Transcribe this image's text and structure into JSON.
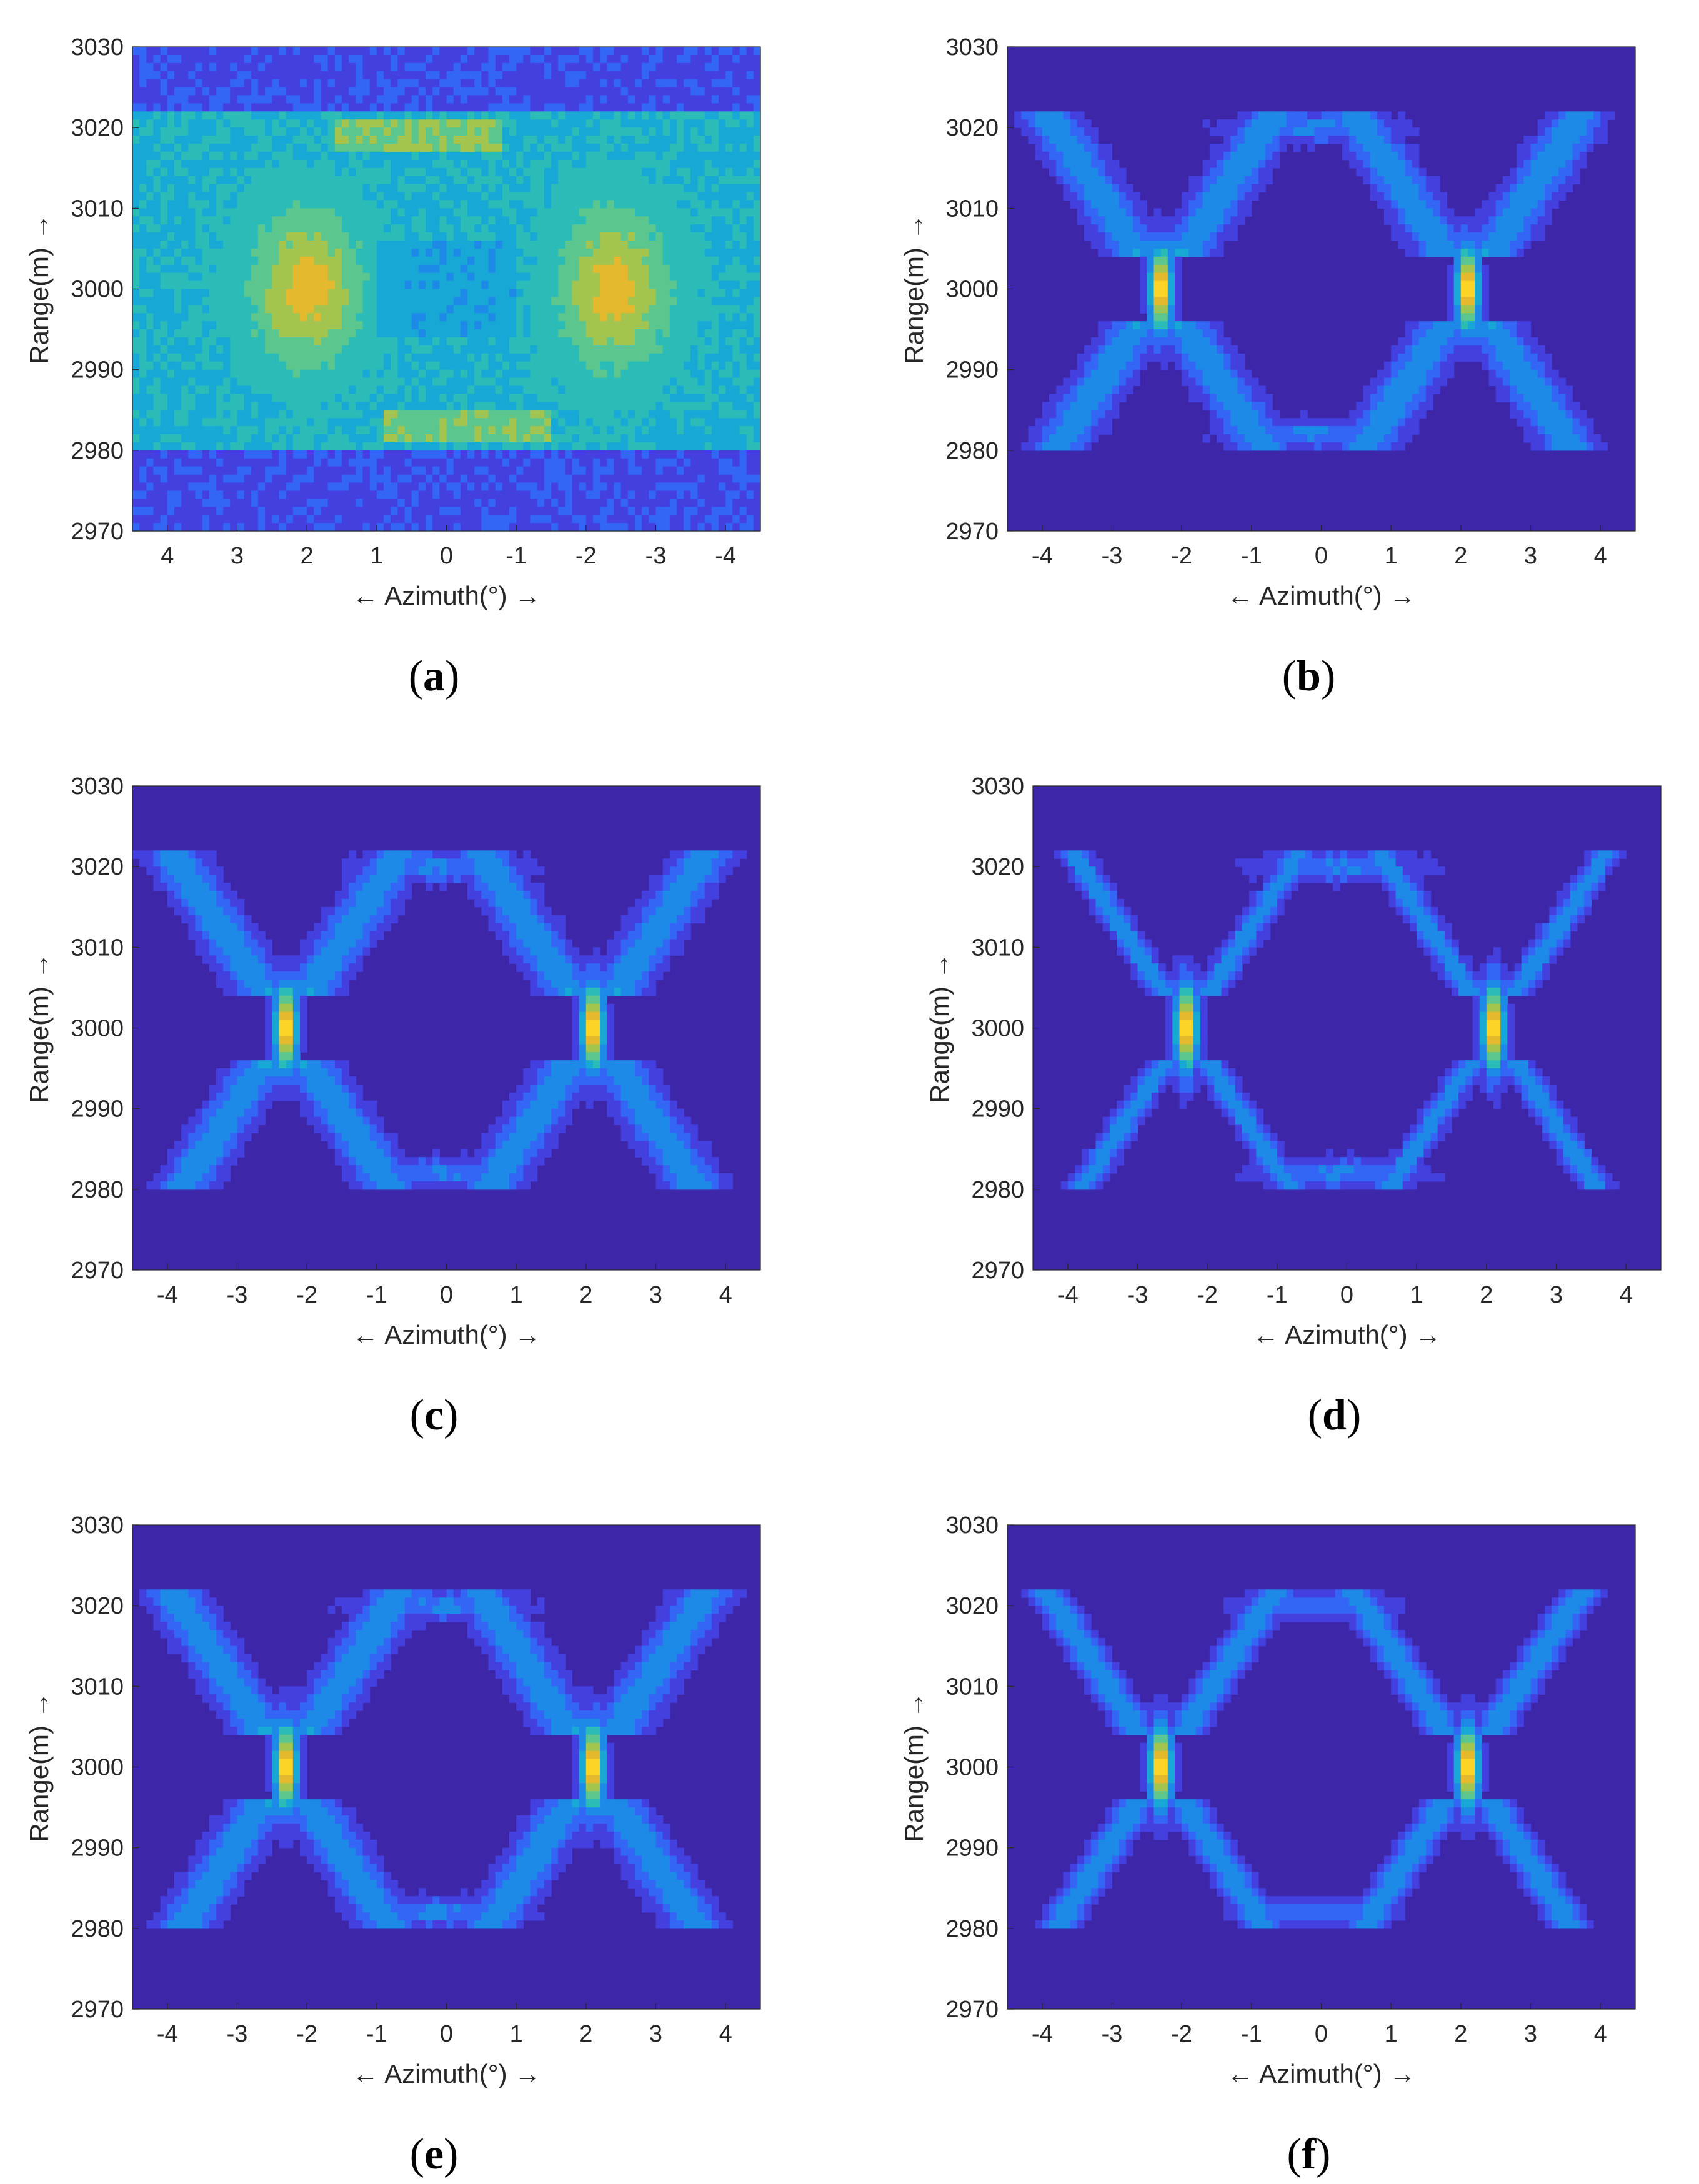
{
  "colormap": [
    "#3e26a8",
    "#4340df",
    "#3366f5",
    "#1e8ae8",
    "#18a8d6",
    "#2bbcb8",
    "#5bc78f",
    "#a3c44f",
    "#e5b92d",
    "#fbd426",
    "#f9fb15"
  ],
  "chart_data": [
    {
      "type": "heatmap",
      "panel_label": "a",
      "xlabel": "← Azimuth(°) →",
      "ylabel": "Range(m) →",
      "x_ticks": [
        "4",
        "3",
        "2",
        "1",
        "0",
        "-1",
        "-2",
        "-3",
        "-4"
      ],
      "y_ticks": [
        "3030",
        "3020",
        "3010",
        "3000",
        "2990",
        "2980",
        "2970"
      ],
      "x_range_deg": [
        4.5,
        -4.5
      ],
      "y_range_m": [
        2970,
        3030
      ],
      "x_axis_reversed": true,
      "targets": [
        {
          "azimuth_deg": 2.0,
          "range_m": 3000
        },
        {
          "azimuth_deg": -2.4,
          "range_m": 3000
        }
      ],
      "peak_level": 0.72,
      "background_level": 0.1,
      "occupied_range_band_m": [
        2980,
        3022
      ],
      "image": "blurred-unfocused"
    },
    {
      "type": "heatmap",
      "panel_label": "b",
      "xlabel": "← Azimuth(°) →",
      "ylabel": "Range(m) →",
      "x_ticks": [
        "-4",
        "-3",
        "-2",
        "-1",
        "0",
        "1",
        "2",
        "3",
        "4"
      ],
      "y_ticks": [
        "3030",
        "3020",
        "3010",
        "3000",
        "2990",
        "2980",
        "2970"
      ],
      "x_range_deg": [
        -4.5,
        4.5
      ],
      "y_range_m": [
        2970,
        3030
      ],
      "x_axis_reversed": false,
      "targets": [
        {
          "azimuth_deg": -2.3,
          "range_m": 3000
        },
        {
          "azimuth_deg": 2.1,
          "range_m": 3000
        }
      ],
      "peak_level": 1.0,
      "background_level": 0.0,
      "occupied_range_band_m": [
        2980,
        3022
      ],
      "image": "x-shaped-sidelobes"
    },
    {
      "type": "heatmap",
      "panel_label": "c",
      "xlabel": "← Azimuth(°) →",
      "ylabel": "Range(m) →",
      "x_ticks": [
        "-4",
        "-3",
        "-2",
        "-1",
        "0",
        "1",
        "2",
        "3",
        "4"
      ],
      "y_ticks": [
        "3030",
        "3020",
        "3010",
        "3000",
        "2990",
        "2980",
        "2970"
      ],
      "x_range_deg": [
        -4.5,
        4.5
      ],
      "y_range_m": [
        2970,
        3030
      ],
      "x_axis_reversed": false,
      "targets": [
        {
          "azimuth_deg": -2.3,
          "range_m": 3000
        },
        {
          "azimuth_deg": 2.1,
          "range_m": 3000
        }
      ],
      "peak_level": 1.0,
      "background_level": 0.0,
      "occupied_range_band_m": [
        2980,
        3022
      ],
      "image": "x-shaped-sidelobes"
    },
    {
      "type": "heatmap",
      "panel_label": "d",
      "xlabel": "← Azimuth(°) →",
      "ylabel": "Range(m) →",
      "x_ticks": [
        "-4",
        "-3",
        "-2",
        "-1",
        "0",
        "1",
        "2",
        "3",
        "4"
      ],
      "y_ticks": [
        "3030",
        "3020",
        "3010",
        "3000",
        "2990",
        "2980",
        "2970"
      ],
      "x_range_deg": [
        -4.5,
        4.5
      ],
      "y_range_m": [
        2970,
        3030
      ],
      "x_axis_reversed": false,
      "targets": [
        {
          "azimuth_deg": -2.3,
          "range_m": 3000
        },
        {
          "azimuth_deg": 2.1,
          "range_m": 3000
        }
      ],
      "peak_level": 1.0,
      "background_level": 0.0,
      "occupied_range_band_m": [
        2980,
        3022
      ],
      "image": "x-shaped-sidelobes-thin"
    },
    {
      "type": "heatmap",
      "panel_label": "e",
      "xlabel": "← Azimuth(°) →",
      "ylabel": "Range(m) →",
      "x_ticks": [
        "-4",
        "-3",
        "-2",
        "-1",
        "0",
        "1",
        "2",
        "3",
        "4"
      ],
      "y_ticks": [
        "3030",
        "3020",
        "3010",
        "3000",
        "2990",
        "2980",
        "2970"
      ],
      "x_range_deg": [
        -4.5,
        4.5
      ],
      "y_range_m": [
        2970,
        3030
      ],
      "x_axis_reversed": false,
      "targets": [
        {
          "azimuth_deg": -2.3,
          "range_m": 3000
        },
        {
          "azimuth_deg": 2.1,
          "range_m": 3000
        }
      ],
      "peak_level": 1.0,
      "background_level": 0.0,
      "occupied_range_band_m": [
        2980,
        3022
      ],
      "image": "x-shaped-sidelobes"
    },
    {
      "type": "heatmap",
      "panel_label": "f",
      "xlabel": "← Azimuth(°) →",
      "ylabel": "Range(m) →",
      "x_ticks": [
        "-4",
        "-3",
        "-2",
        "-1",
        "0",
        "1",
        "2",
        "3",
        "4"
      ],
      "y_ticks": [
        "3030",
        "3020",
        "3010",
        "3000",
        "2990",
        "2980",
        "2970"
      ],
      "x_range_deg": [
        -4.5,
        4.5
      ],
      "y_range_m": [
        2970,
        3030
      ],
      "x_axis_reversed": false,
      "targets": [
        {
          "azimuth_deg": -2.3,
          "range_m": 3000
        },
        {
          "azimuth_deg": 2.1,
          "range_m": 3000
        }
      ],
      "peak_level": 1.0,
      "background_level": 0.0,
      "occupied_range_band_m": [
        2980,
        3022
      ],
      "image": "x-shaped-sidelobes-clean"
    }
  ]
}
